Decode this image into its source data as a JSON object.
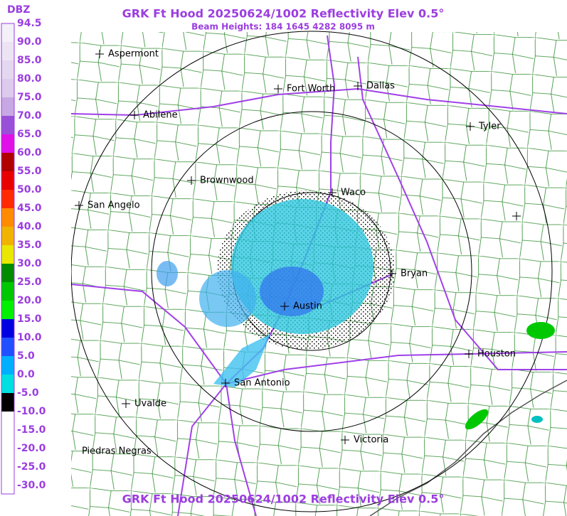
{
  "header": {
    "title": "GRK Ft Hood 20250624/1002 Reflectivity Elev 0.5°",
    "subtitle": "Beam Heights: 184 1645 4282 8095 m"
  },
  "legend": {
    "unit": "DBZ",
    "items": [
      {
        "label": "94.5",
        "color": "#f4f0f8"
      },
      {
        "label": "90.0",
        "color": "#ece4f4"
      },
      {
        "label": "85.0",
        "color": "#e4d8f0"
      },
      {
        "label": "80.0",
        "color": "#dccbec"
      },
      {
        "label": "75.0",
        "color": "#c8a8e4"
      },
      {
        "label": "70.0",
        "color": "#9a4fd8"
      },
      {
        "label": "65.0",
        "color": "#e010e8"
      },
      {
        "label": "60.0",
        "color": "#b00000"
      },
      {
        "label": "55.0",
        "color": "#e80000"
      },
      {
        "label": "50.0",
        "color": "#ff2a00"
      },
      {
        "label": "45.0",
        "color": "#ff8c00"
      },
      {
        "label": "40.0",
        "color": "#f0b400"
      },
      {
        "label": "35.0",
        "color": "#e8e800"
      },
      {
        "label": "30.0",
        "color": "#008c00"
      },
      {
        "label": "25.0",
        "color": "#00c800"
      },
      {
        "label": "20.0",
        "color": "#00f000"
      },
      {
        "label": "15.0",
        "color": "#0000e0"
      },
      {
        "label": "10.0",
        "color": "#2050ff"
      },
      {
        "label": "5.0",
        "color": "#00b0ff"
      },
      {
        "label": "0.0",
        "color": "#00e0e0"
      },
      {
        "label": "-5.0",
        "color": "#000000"
      },
      {
        "label": "-10.0",
        "color": "#ffffff"
      },
      {
        "label": "-15.0",
        "color": "#ffffff"
      },
      {
        "label": "-20.0",
        "color": "#ffffff"
      },
      {
        "label": "-25.0",
        "color": "#ffffff"
      },
      {
        "label": "-30.0",
        "color": "#ffffff"
      }
    ]
  },
  "cities": [
    "Aspermont",
    "Fort Worth",
    "Dallas",
    "Abilene",
    "Tyler",
    "Brownwood",
    "Waco",
    "San Angelo",
    "Bryan",
    "Austin",
    "Houston",
    "San Antonio",
    "Uvalde",
    "Victoria",
    "Piedras Negras"
  ],
  "footer": {
    "title": "GRK Ft Hood 20250624/1002 Reflectivity Elev 0.5°"
  }
}
